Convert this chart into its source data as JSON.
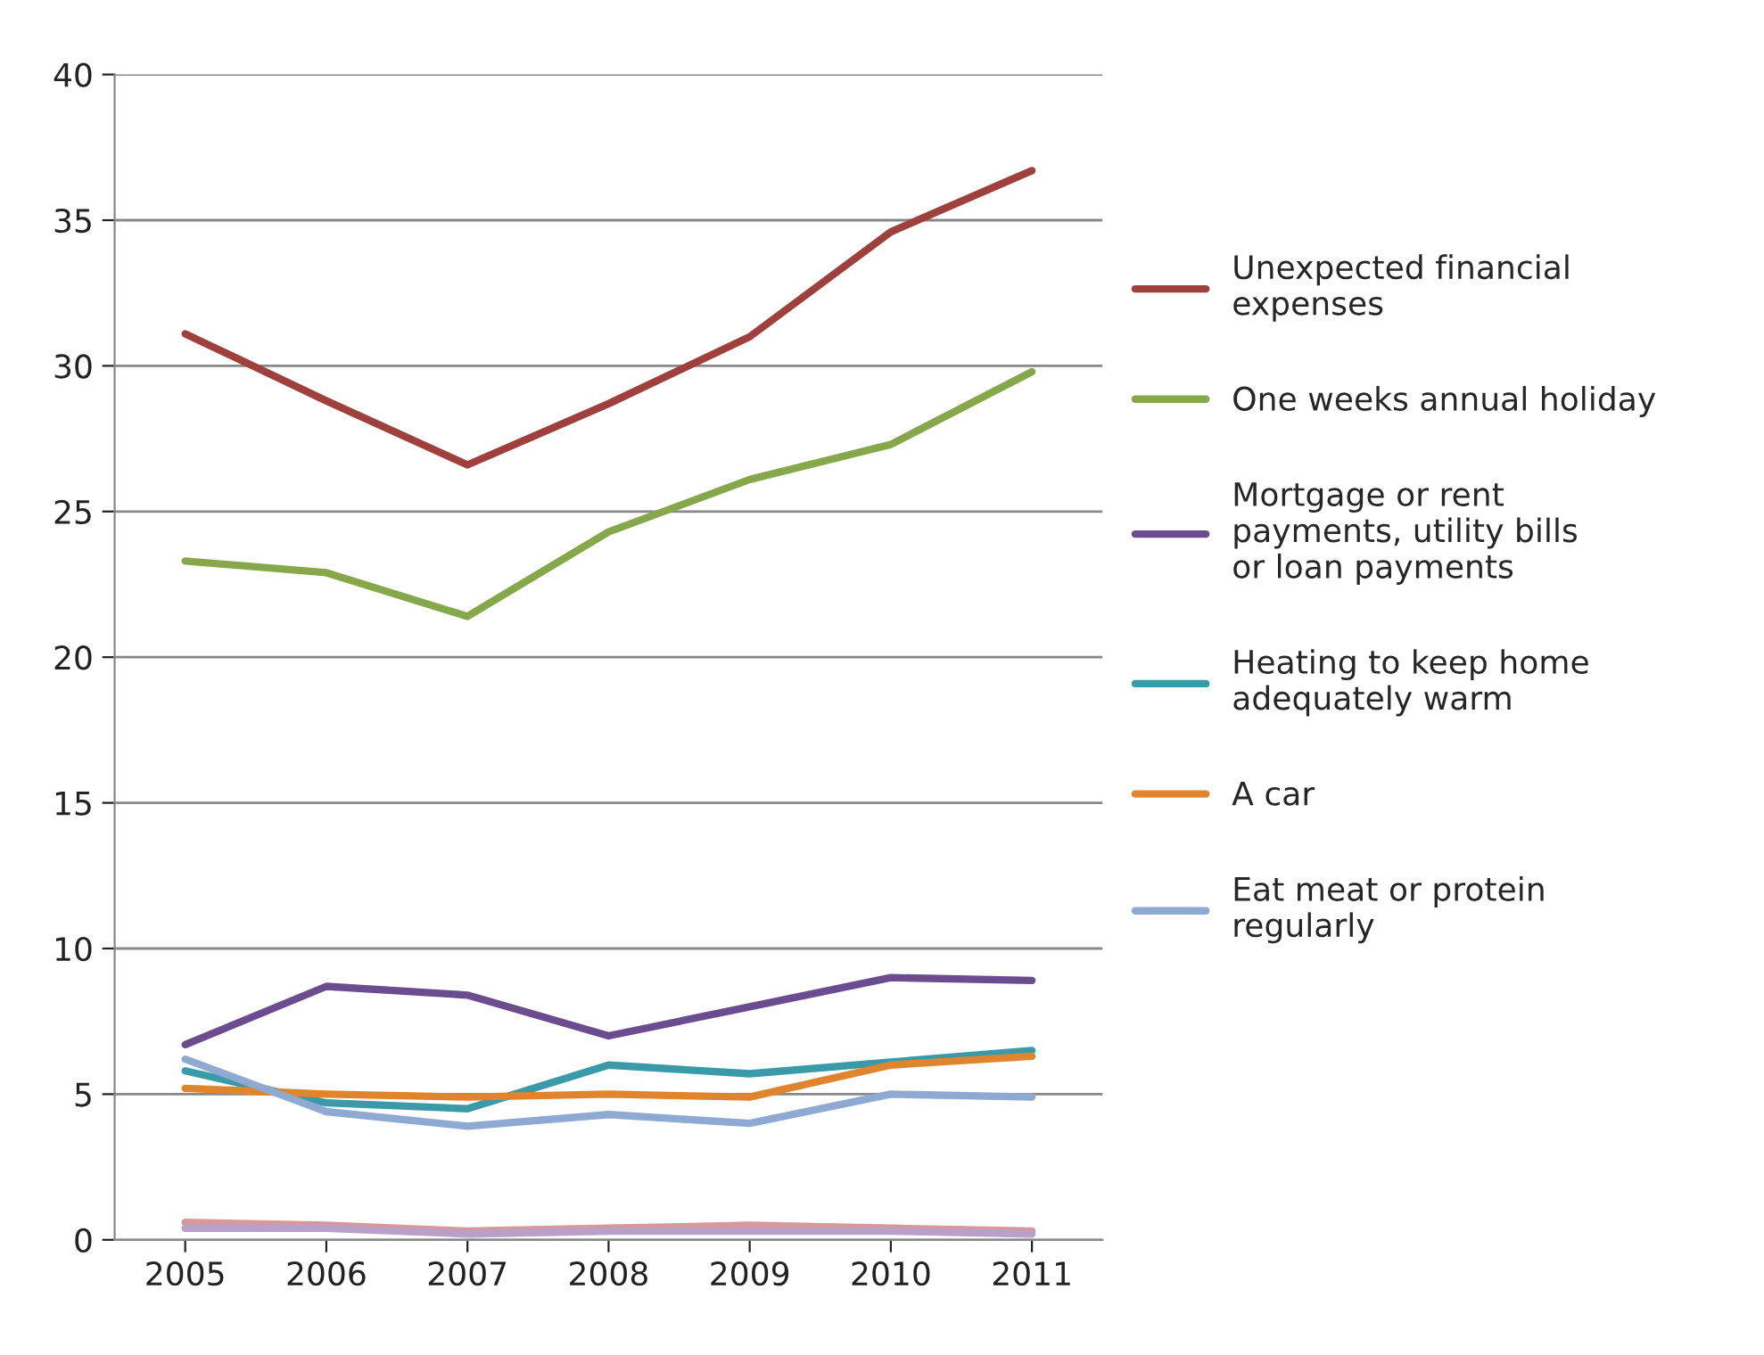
{
  "chart_data": {
    "type": "line",
    "categories": [
      "2005",
      "2006",
      "2007",
      "2008",
      "2009",
      "2010",
      "2011"
    ],
    "ylim": [
      0,
      40
    ],
    "yticks": [
      0,
      5,
      10,
      15,
      20,
      25,
      30,
      35,
      40
    ],
    "grid": "y",
    "legend": "right",
    "marker": "none",
    "line_style": "solid",
    "series": [
      {
        "name": "Unexpected financial expenses",
        "color": "#a0403c",
        "values": [
          31.1,
          28.8,
          26.6,
          28.7,
          31.0,
          34.6,
          36.7
        ]
      },
      {
        "name": "One weeks annual holiday",
        "color": "#86a84a",
        "values": [
          23.3,
          22.9,
          21.4,
          24.3,
          26.1,
          27.3,
          29.8
        ]
      },
      {
        "name": "Mortgage or rent payments, utility bills or loan payments",
        "color": "#6b4c8e",
        "values": [
          6.7,
          8.7,
          8.4,
          7.0,
          8.0,
          9.0,
          8.9
        ]
      },
      {
        "name": "Heating to keep home adequately warm",
        "color": "#3a9aa8",
        "values": [
          5.8,
          4.7,
          4.5,
          6.0,
          5.7,
          6.1,
          6.5
        ]
      },
      {
        "name": "A car",
        "color": "#e0852e",
        "values": [
          5.2,
          5.0,
          4.9,
          5.0,
          4.9,
          6.0,
          6.3
        ]
      },
      {
        "name": "Eat meat or protein regularly",
        "color": "#8ea9d2",
        "values": [
          6.2,
          4.4,
          3.9,
          4.3,
          4.0,
          5.0,
          4.9
        ]
      },
      {
        "color": "#d9979a",
        "values": [
          0.6,
          0.5,
          0.3,
          0.4,
          0.5,
          0.4,
          0.3
        ]
      },
      {
        "color": "#b8a0c8",
        "values": [
          0.4,
          0.4,
          0.2,
          0.3,
          0.3,
          0.3,
          0.2
        ]
      }
    ]
  }
}
